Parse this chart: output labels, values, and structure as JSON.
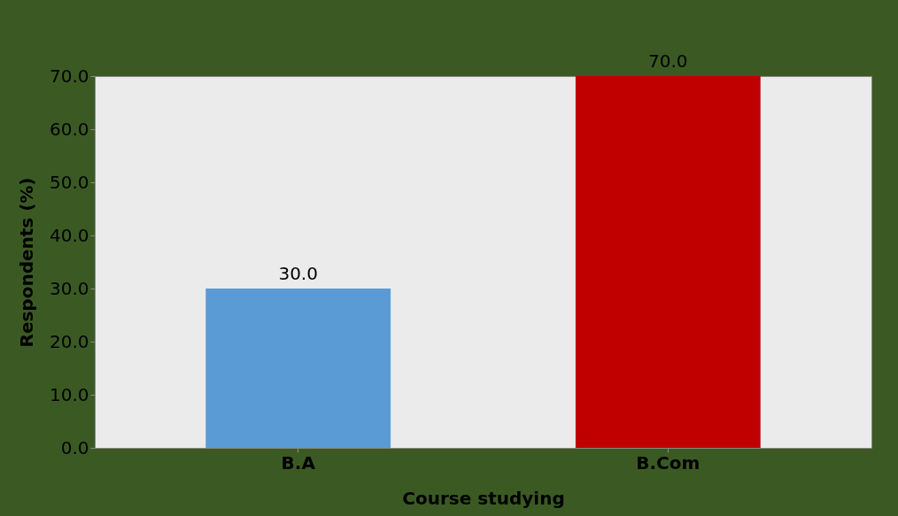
{
  "chart_data": {
    "type": "bar",
    "xlabel": "Course studying",
    "ylabel": "Respondents (%)",
    "categories": [
      "B.A",
      "B.Com"
    ],
    "values": [
      30,
      70
    ],
    "colors": [
      "#5b9bd5",
      "#c00000"
    ],
    "value_labels": [
      "30.0",
      "70.0"
    ],
    "ylim": [
      0,
      70
    ],
    "yticks": [
      {
        "value": 0,
        "label": "0.0"
      },
      {
        "value": 10,
        "label": "10.0"
      },
      {
        "value": 20,
        "label": "20.0"
      },
      {
        "value": 30,
        "label": "30.0"
      },
      {
        "value": 40,
        "label": "40.0"
      },
      {
        "value": 50,
        "label": "50.0"
      },
      {
        "value": 60,
        "label": "60.0"
      },
      {
        "value": 70,
        "label": "70.0"
      }
    ]
  }
}
